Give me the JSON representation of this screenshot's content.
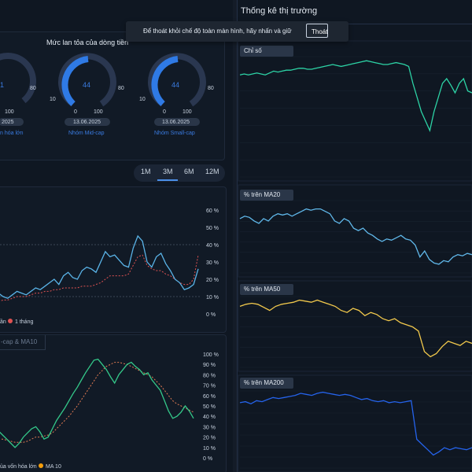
{
  "left": {
    "flow_title": "Mức lan tỏa của dòng tiền",
    "gauges": [
      {
        "value": "1",
        "min": "0",
        "max": "100",
        "scale_mid": "80",
        "date": "2025",
        "name": "n hóa lớn"
      },
      {
        "value": "44",
        "min": "0",
        "max": "100",
        "scale_left": "10",
        "scale_mid": "80",
        "date": "13.06.2025",
        "name": "Nhóm Mid-cap"
      },
      {
        "value": "44",
        "min": "0",
        "max": "100",
        "scale_left": "10",
        "scale_mid": "80",
        "date": "13.06.2025",
        "name": "Nhóm Small-cap"
      }
    ],
    "periods": [
      "1M",
      "3M",
      "6M",
      "12M"
    ],
    "active_period": "3M",
    "chart1": {
      "y_ticks": [
        "60 %",
        "50 %",
        "40 %",
        "30 %",
        "20 %",
        "10 %",
        "0 %"
      ],
      "legend": [
        {
          "label": "ần",
          "color": "#e05252"
        },
        {
          "label": "1 tháng",
          "color": "#e05252"
        }
      ],
      "series_primary": [
        12,
        10,
        9,
        11,
        13,
        12,
        11,
        13,
        15,
        14,
        16,
        18,
        20,
        17,
        22,
        24,
        21,
        20,
        25,
        27,
        26,
        24,
        30,
        36,
        33,
        34,
        31,
        28,
        27,
        38,
        45,
        42,
        30,
        27,
        33,
        35,
        29,
        25,
        20,
        18,
        14,
        15,
        17,
        26
      ],
      "series_ma": [
        7,
        8,
        8,
        9,
        10,
        10,
        10,
        11,
        12,
        12,
        13,
        13,
        14,
        14,
        15,
        15,
        15,
        15,
        16,
        16,
        16,
        17,
        18,
        20,
        22,
        22,
        22,
        22,
        23,
        28,
        33,
        34,
        28,
        26,
        25,
        25,
        23,
        22,
        20,
        18,
        17,
        17,
        20,
        34
      ]
    },
    "chart2": {
      "tab_label": "-cap & MA10",
      "y_ticks": [
        "100 %",
        "90 %",
        "80 %",
        "70 %",
        "60 %",
        "50 %",
        "40 %",
        "30 %",
        "20 %",
        "10 %",
        "0 %"
      ],
      "legend": [
        {
          "label": "ủa vốn hóa lớn",
          "color": "#22c55e"
        },
        {
          "label": "MA 10",
          "color": "#f59e0b"
        }
      ],
      "series_primary": [
        26,
        22,
        18,
        14,
        10,
        14,
        20,
        24,
        28,
        30,
        25,
        18,
        20,
        28,
        36,
        42,
        48,
        55,
        62,
        68,
        75,
        82,
        88,
        94,
        95,
        90,
        85,
        78,
        72,
        80,
        85,
        90,
        92,
        88,
        85,
        80,
        82,
        75,
        70,
        65,
        55,
        45,
        38,
        40,
        44,
        50,
        45,
        38
      ],
      "series_ma": [
        18,
        18,
        17,
        16,
        15,
        15,
        15,
        16,
        18,
        20,
        20,
        21,
        22,
        24,
        28,
        32,
        36,
        40,
        45,
        50,
        56,
        62,
        68,
        74,
        80,
        84,
        88,
        90,
        92,
        92,
        91,
        90,
        88,
        86,
        84,
        82,
        80,
        78,
        74,
        70,
        65,
        60,
        55,
        52,
        50,
        48,
        46,
        44
      ]
    }
  },
  "right": {
    "title": "Thống kê thị trường",
    "toast_text": "Để thoát khỏi chế độ toàn màn hình, hãy nhấn và giữ",
    "toast_button": "Thoát",
    "panels": [
      {
        "label": "Chỉ số",
        "color": "#2dd4a6",
        "values": [
          79,
          80,
          79,
          80,
          81,
          80,
          79,
          81,
          83,
          82,
          83,
          84,
          84,
          85,
          86,
          86,
          85,
          85,
          86,
          87,
          88,
          89,
          90,
          89,
          88,
          89,
          90,
          91,
          92,
          93,
          94,
          93,
          92,
          91,
          90,
          90,
          91,
          92,
          91,
          90,
          88,
          70,
          55,
          40,
          30,
          20,
          40,
          55,
          70,
          75,
          68,
          60,
          70,
          75,
          62,
          60
        ]
      },
      {
        "label": "% trên MA20",
        "color": "#60b8ea",
        "values": [
          62,
          64,
          63,
          60,
          58,
          62,
          60,
          64,
          66,
          65,
          66,
          64,
          66,
          68,
          70,
          69,
          70,
          70,
          68,
          66,
          60,
          58,
          62,
          60,
          54,
          52,
          54,
          50,
          48,
          45,
          43,
          45,
          44,
          46,
          48,
          45,
          44,
          40,
          30,
          35,
          28,
          25,
          24,
          27,
          26,
          30,
          32,
          31,
          33,
          32
        ]
      },
      {
        "label": "% trên MA50",
        "color": "#f2c94c",
        "values": [
          64,
          66,
          67,
          66,
          63,
          60,
          64,
          66,
          67,
          68,
          70,
          69,
          68,
          70,
          68,
          66,
          64,
          60,
          58,
          62,
          60,
          55,
          58,
          56,
          52,
          50,
          52,
          48,
          46,
          44,
          40,
          20,
          15,
          18,
          25,
          30,
          28,
          26,
          30,
          28
        ]
      },
      {
        "label": "% trên MA200",
        "color": "#2563eb",
        "values": [
          55,
          56,
          54,
          57,
          56,
          58,
          60,
          59,
          60,
          61,
          62,
          64,
          63,
          62,
          64,
          65,
          64,
          63,
          62,
          63,
          62,
          60,
          58,
          59,
          57,
          56,
          57,
          55,
          56,
          55,
          56,
          57,
          20,
          15,
          10,
          5,
          8,
          12,
          10,
          12,
          11,
          10,
          12
        ]
      }
    ]
  }
}
